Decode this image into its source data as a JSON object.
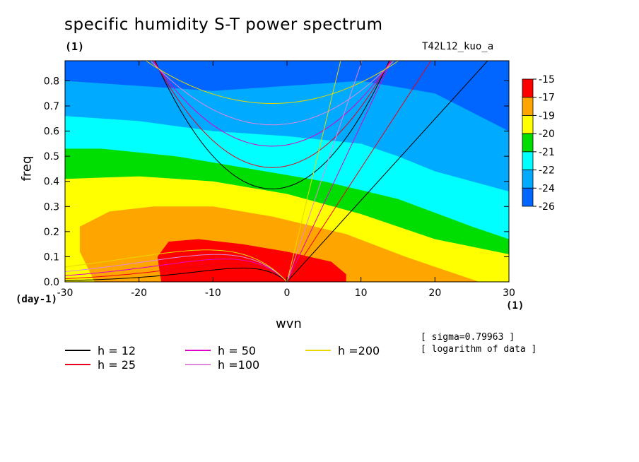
{
  "chart_data": {
    "type": "heatmap",
    "title": "specific humidity S-T power spectrum",
    "title_unit": "(1)",
    "experiment": "T42L12_kuo_a",
    "xlabel": "wvn",
    "x_unit": "(1)",
    "ylabel": "freq",
    "y_unit": "(day-1)",
    "xlim": [
      -30,
      30
    ],
    "ylim": [
      0,
      0.88
    ],
    "x_ticks": [
      "-30",
      "-20",
      "-10",
      "0",
      "10",
      "20",
      "30"
    ],
    "y_ticks": [
      "0.0",
      "0.1",
      "0.2",
      "0.3",
      "0.4",
      "0.5",
      "0.6",
      "0.7",
      "0.8"
    ],
    "colorbar": {
      "levels": [
        "-15",
        "-17",
        "-19",
        "-20",
        "-21",
        "-22",
        "-24",
        "-26"
      ],
      "colors": [
        "#ff0000",
        "#ffa500",
        "#ffff00",
        "#00dd00",
        "#00ffff",
        "#00aaff",
        "#0066ff"
      ]
    },
    "dispersion_curves": [
      {
        "label": "h = 12",
        "color": "#000000",
        "h": 12
      },
      {
        "label": "h = 25",
        "color": "#e8001c",
        "h": 25
      },
      {
        "label": "h = 50",
        "color": "#e000c8",
        "h": 50
      },
      {
        "label": "h =100",
        "color": "#dd88dd",
        "h": 100
      },
      {
        "label": "h =200",
        "color": "#e8d800",
        "h": 200
      }
    ],
    "notes": [
      "[ sigma=0.79963 ]",
      "[ logarithm of data ]"
    ]
  }
}
